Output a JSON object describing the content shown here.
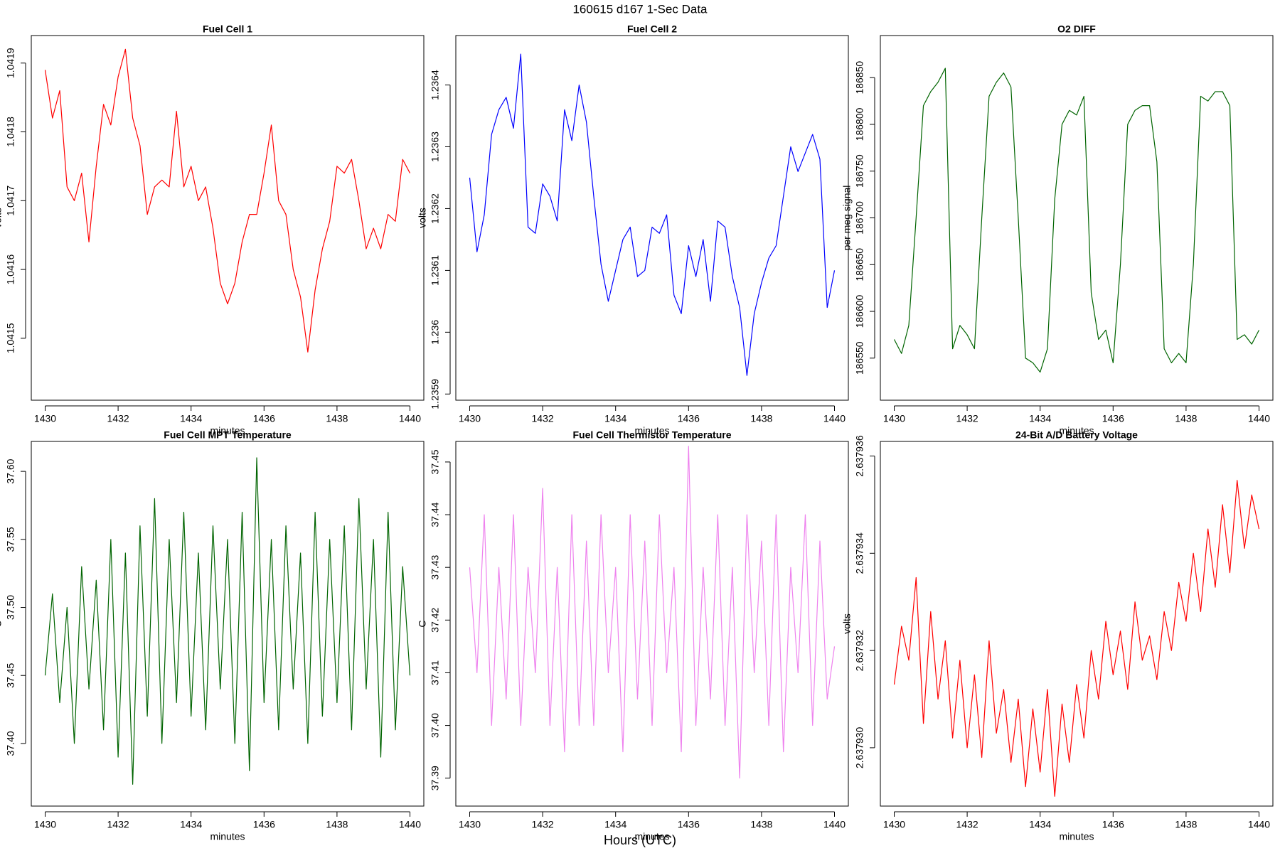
{
  "title": "160615   d167   1-Sec Data",
  "x_caption": "Hours (UTC)",
  "chart_data": [
    {
      "type": "line",
      "title": "Fuel Cell 1",
      "x_label": "minutes",
      "y_label": "volts",
      "color": "#ff0000",
      "x": [
        1430,
        1430.2,
        1430.4,
        1430.6,
        1430.8,
        1431,
        1431.2,
        1431.4,
        1431.6,
        1431.8,
        1432,
        1432.2,
        1432.4,
        1432.6,
        1432.8,
        1433,
        1433.2,
        1433.4,
        1433.6,
        1433.8,
        1434,
        1434.2,
        1434.4,
        1434.6,
        1434.8,
        1435,
        1435.2,
        1435.4,
        1435.6,
        1435.8,
        1436,
        1436.2,
        1436.4,
        1436.6,
        1436.8,
        1437,
        1437.2,
        1437.4,
        1437.6,
        1437.8,
        1438,
        1438.2,
        1438.4,
        1438.6,
        1438.8,
        1439,
        1439.2,
        1439.4,
        1439.6,
        1439.8,
        1440
      ],
      "values": [
        1.04189,
        1.04182,
        1.04186,
        1.04172,
        1.0417,
        1.04174,
        1.04164,
        1.04175,
        1.04184,
        1.04181,
        1.04188,
        1.04192,
        1.04182,
        1.04178,
        1.04168,
        1.04172,
        1.04173,
        1.04172,
        1.04183,
        1.04172,
        1.04175,
        1.0417,
        1.04172,
        1.04166,
        1.04158,
        1.04155,
        1.04158,
        1.04164,
        1.04168,
        1.04168,
        1.04174,
        1.04181,
        1.0417,
        1.04168,
        1.0416,
        1.04156,
        1.04148,
        1.04157,
        1.04163,
        1.04167,
        1.04175,
        1.04174,
        1.04176,
        1.0417,
        1.04163,
        1.04166,
        1.04163,
        1.04168,
        1.04167,
        1.04176,
        1.04174
      ],
      "xlim": [
        1429.62,
        1440.38
      ],
      "xticks": [
        1430,
        1432,
        1434,
        1436,
        1438,
        1440
      ],
      "ylim": [
        1.04141,
        1.04194
      ],
      "yticks": [
        1.0415,
        1.0416,
        1.0417,
        1.0418,
        1.0419
      ]
    },
    {
      "type": "line",
      "title": "Fuel Cell 2",
      "x_label": "minutes",
      "y_label": "volts",
      "color": "#0000ff",
      "x": [
        1430,
        1430.2,
        1430.4,
        1430.6,
        1430.8,
        1431,
        1431.2,
        1431.4,
        1431.6,
        1431.8,
        1432,
        1432.2,
        1432.4,
        1432.6,
        1432.8,
        1433,
        1433.2,
        1433.4,
        1433.6,
        1433.8,
        1434,
        1434.2,
        1434.4,
        1434.6,
        1434.8,
        1435,
        1435.2,
        1435.4,
        1435.6,
        1435.8,
        1436,
        1436.2,
        1436.4,
        1436.6,
        1436.8,
        1437,
        1437.2,
        1437.4,
        1437.6,
        1437.8,
        1438,
        1438.2,
        1438.4,
        1438.6,
        1438.8,
        1439,
        1439.2,
        1439.4,
        1439.6,
        1439.8,
        1440
      ],
      "values": [
        1.23625,
        1.23613,
        1.23619,
        1.23632,
        1.23636,
        1.23638,
        1.23633,
        1.23645,
        1.23617,
        1.23616,
        1.23624,
        1.23622,
        1.23618,
        1.23636,
        1.23631,
        1.2364,
        1.23634,
        1.23622,
        1.23611,
        1.23605,
        1.2361,
        1.23615,
        1.23617,
        1.23609,
        1.2361,
        1.23617,
        1.23616,
        1.23619,
        1.23606,
        1.23603,
        1.23614,
        1.23609,
        1.23615,
        1.23605,
        1.23618,
        1.23617,
        1.23609,
        1.23604,
        1.23593,
        1.23603,
        1.23608,
        1.23612,
        1.23614,
        1.23622,
        1.2363,
        1.23626,
        1.23629,
        1.23632,
        1.23628,
        1.23604,
        1.2361
      ],
      "xlim": [
        1429.62,
        1440.38
      ],
      "xticks": [
        1430,
        1432,
        1434,
        1436,
        1438,
        1440
      ],
      "ylim": [
        1.23589,
        1.23648
      ],
      "yticks": [
        1.2359,
        1.236,
        1.2361,
        1.2362,
        1.2363,
        1.2364
      ]
    },
    {
      "type": "line",
      "title": "O2 DIFF",
      "x_label": "minutes",
      "y_label": "per meg signal",
      "color": "#006400",
      "x": [
        1430,
        1430.2,
        1430.4,
        1430.6,
        1430.8,
        1431,
        1431.2,
        1431.4,
        1431.6,
        1431.8,
        1432,
        1432.2,
        1432.4,
        1432.6,
        1432.8,
        1433,
        1433.2,
        1433.4,
        1433.6,
        1433.8,
        1434,
        1434.2,
        1434.4,
        1434.6,
        1434.8,
        1435,
        1435.2,
        1435.4,
        1435.6,
        1435.8,
        1436,
        1436.2,
        1436.4,
        1436.6,
        1436.8,
        1437,
        1437.2,
        1437.4,
        1437.6,
        1437.8,
        1438,
        1438.2,
        1438.4,
        1438.6,
        1438.8,
        1439,
        1439.2,
        1439.4,
        1439.6,
        1439.8,
        1440
      ],
      "values": [
        186570,
        186555,
        186585,
        186700,
        186820,
        186835,
        186845,
        186860,
        186560,
        186585,
        186575,
        186560,
        186700,
        186830,
        186845,
        186855,
        186840,
        186700,
        186550,
        186545,
        186535,
        186560,
        186720,
        186800,
        186815,
        186810,
        186830,
        186620,
        186570,
        186580,
        186545,
        186650,
        186800,
        186815,
        186820,
        186820,
        186760,
        186560,
        186545,
        186555,
        186545,
        186650,
        186830,
        186825,
        186835,
        186835,
        186820,
        186570,
        186575,
        186565,
        186580
      ],
      "xlim": [
        1429.62,
        1440.38
      ],
      "xticks": [
        1430,
        1432,
        1434,
        1436,
        1438,
        1440
      ],
      "ylim": [
        186505,
        186895
      ],
      "yticks": [
        186550,
        186600,
        186650,
        186700,
        186750,
        186800,
        186850
      ]
    },
    {
      "type": "line",
      "title": "Fuel Cell MPT Temperature",
      "x_label": "minutes",
      "y_label": "C",
      "color": "#006400",
      "x": [
        1430,
        1430.2,
        1430.4,
        1430.6,
        1430.8,
        1431,
        1431.2,
        1431.4,
        1431.6,
        1431.8,
        1432,
        1432.2,
        1432.4,
        1432.6,
        1432.8,
        1433,
        1433.2,
        1433.4,
        1433.6,
        1433.8,
        1434,
        1434.2,
        1434.4,
        1434.6,
        1434.8,
        1435,
        1435.2,
        1435.4,
        1435.6,
        1435.8,
        1436,
        1436.2,
        1436.4,
        1436.6,
        1436.8,
        1437,
        1437.2,
        1437.4,
        1437.6,
        1437.8,
        1438,
        1438.2,
        1438.4,
        1438.6,
        1438.8,
        1439,
        1439.2,
        1439.4,
        1439.6,
        1439.8,
        1440
      ],
      "values": [
        37.45,
        37.51,
        37.43,
        37.5,
        37.4,
        37.53,
        37.44,
        37.52,
        37.41,
        37.55,
        37.39,
        37.54,
        37.37,
        37.56,
        37.42,
        37.58,
        37.4,
        37.55,
        37.43,
        37.57,
        37.42,
        37.54,
        37.41,
        37.56,
        37.44,
        37.55,
        37.4,
        37.57,
        37.38,
        37.61,
        37.43,
        37.55,
        37.41,
        37.56,
        37.44,
        37.54,
        37.4,
        37.57,
        37.42,
        37.55,
        37.43,
        37.56,
        37.41,
        37.58,
        37.44,
        37.55,
        37.39,
        37.57,
        37.41,
        37.53,
        37.45
      ],
      "xlim": [
        1429.62,
        1440.38
      ],
      "xticks": [
        1430,
        1432,
        1434,
        1436,
        1438,
        1440
      ],
      "ylim": [
        37.354,
        37.622
      ],
      "yticks": [
        {
          "value": 37.4,
          "label": "37.40"
        },
        37.45,
        {
          "value": 37.5,
          "label": "37.50"
        },
        37.55,
        {
          "value": 37.6,
          "label": "37.60"
        }
      ]
    },
    {
      "type": "line",
      "title": "Fuel Cell Thermistor Temperature",
      "x_label": "minutes",
      "y_label": "C",
      "color": "#ee82ee",
      "x": [
        1430,
        1430.2,
        1430.4,
        1430.6,
        1430.8,
        1431,
        1431.2,
        1431.4,
        1431.6,
        1431.8,
        1432,
        1432.2,
        1432.4,
        1432.6,
        1432.8,
        1433,
        1433.2,
        1433.4,
        1433.6,
        1433.8,
        1434,
        1434.2,
        1434.4,
        1434.6,
        1434.8,
        1435,
        1435.2,
        1435.4,
        1435.6,
        1435.8,
        1436,
        1436.2,
        1436.4,
        1436.6,
        1436.8,
        1437,
        1437.2,
        1437.4,
        1437.6,
        1437.8,
        1438,
        1438.2,
        1438.4,
        1438.6,
        1438.8,
        1439,
        1439.2,
        1439.4,
        1439.6,
        1439.8,
        1440
      ],
      "values": [
        37.43,
        37.41,
        37.44,
        37.4,
        37.43,
        37.405,
        37.44,
        37.4,
        37.43,
        37.41,
        37.445,
        37.4,
        37.43,
        37.395,
        37.44,
        37.4,
        37.435,
        37.4,
        37.44,
        37.41,
        37.43,
        37.395,
        37.44,
        37.405,
        37.435,
        37.4,
        37.44,
        37.41,
        37.43,
        37.395,
        37.453,
        37.4,
        37.43,
        37.405,
        37.44,
        37.4,
        37.43,
        37.39,
        37.44,
        37.41,
        37.435,
        37.4,
        37.44,
        37.395,
        37.43,
        37.41,
        37.44,
        37.4,
        37.435,
        37.405,
        37.415
      ],
      "xlim": [
        1429.62,
        1440.38
      ],
      "xticks": [
        1430,
        1432,
        1434,
        1436,
        1438,
        1440
      ],
      "ylim": [
        37.3847,
        37.4539
      ],
      "yticks": [
        37.39,
        {
          "value": 37.4,
          "label": "37.40"
        },
        37.41,
        37.42,
        37.43,
        37.44,
        37.45
      ]
    },
    {
      "type": "line",
      "title": "24-Bit A/D Battery Voltage",
      "x_label": "minutes",
      "y_label": "volts",
      "color": "#ff0000",
      "x": [
        1430,
        1430.2,
        1430.4,
        1430.6,
        1430.8,
        1431,
        1431.2,
        1431.4,
        1431.6,
        1431.8,
        1432,
        1432.2,
        1432.4,
        1432.6,
        1432.8,
        1433,
        1433.2,
        1433.4,
        1433.6,
        1433.8,
        1434,
        1434.2,
        1434.4,
        1434.6,
        1434.8,
        1435,
        1435.2,
        1435.4,
        1435.6,
        1435.8,
        1436,
        1436.2,
        1436.4,
        1436.6,
        1436.8,
        1437,
        1437.2,
        1437.4,
        1437.6,
        1437.8,
        1438,
        1438.2,
        1438.4,
        1438.6,
        1438.8,
        1439,
        1439.2,
        1439.4,
        1439.6,
        1439.8,
        1440
      ],
      "values": [
        2.6379313,
        2.6379325,
        2.6379318,
        2.6379335,
        2.6379305,
        2.6379328,
        2.637931,
        2.6379322,
        2.6379302,
        2.6379318,
        2.63793,
        2.6379315,
        2.6379298,
        2.6379322,
        2.6379303,
        2.6379312,
        2.6379297,
        2.637931,
        2.6379292,
        2.6379308,
        2.6379295,
        2.6379312,
        2.637929,
        2.6379309,
        2.6379297,
        2.6379313,
        2.6379302,
        2.637932,
        2.637931,
        2.6379326,
        2.6379315,
        2.6379324,
        2.6379312,
        2.637933,
        2.6379318,
        2.6379323,
        2.6379314,
        2.6379328,
        2.637932,
        2.6379334,
        2.6379326,
        2.637934,
        2.6379328,
        2.6379345,
        2.6379333,
        2.637935,
        2.6379336,
        2.6379355,
        2.6379341,
        2.6379352,
        2.6379345
      ],
      "xlim": [
        1429.62,
        1440.38
      ],
      "xticks": [
        1430,
        1432,
        1434,
        1436,
        1438,
        1440
      ],
      "ylim": [
        2.6379288,
        2.6379363
      ],
      "yticks": [
        {
          "value": 2.63793,
          "label": "2.637930"
        },
        2.637932,
        2.637934,
        2.637936
      ]
    }
  ]
}
